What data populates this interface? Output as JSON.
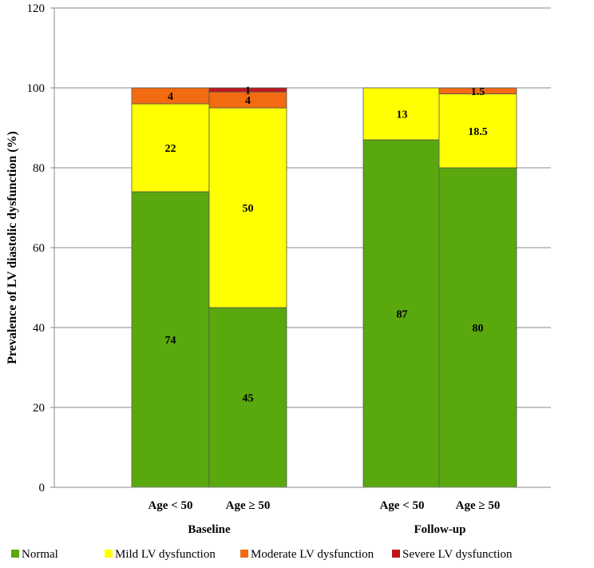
{
  "chart_data": {
    "type": "bar",
    "stacked": true,
    "title": "",
    "xlabel": "",
    "ylabel": "Prevalence of LV diastolic dysfunction (%)",
    "ylim": [
      0,
      120
    ],
    "yticks": [
      0,
      20,
      40,
      60,
      80,
      100,
      120
    ],
    "grid": true,
    "legend_position": "bottom",
    "groups": [
      {
        "name": "Baseline",
        "categories": [
          "Age < 50",
          "Age ≥ 50"
        ]
      },
      {
        "name": "Follow-up",
        "categories": [
          "Age < 50",
          "Age ≥ 50"
        ]
      }
    ],
    "categories": [
      "Age < 50",
      "Age ≥ 50",
      "Age < 50",
      "Age ≥ 50"
    ],
    "series": [
      {
        "name": "Normal",
        "color": "#59a80e",
        "values": [
          74,
          45,
          87,
          80
        ],
        "labels": [
          "74",
          "45",
          "87",
          "80"
        ]
      },
      {
        "name": "Mild LV dysfunction",
        "color": "#ffff00",
        "values": [
          22,
          50,
          13,
          18.5
        ],
        "labels": [
          "22",
          "50",
          "13",
          "18.5"
        ]
      },
      {
        "name": "Moderate LV dysfunction",
        "color": "#f26b11",
        "values": [
          4,
          4,
          0,
          1.5
        ],
        "labels": [
          "4",
          "4",
          "",
          "1.5"
        ]
      },
      {
        "name": "Severe LV dysfunction",
        "color": "#c0151c",
        "values": [
          0,
          1,
          0,
          0
        ],
        "labels": [
          "",
          "1",
          "",
          ""
        ]
      }
    ]
  }
}
